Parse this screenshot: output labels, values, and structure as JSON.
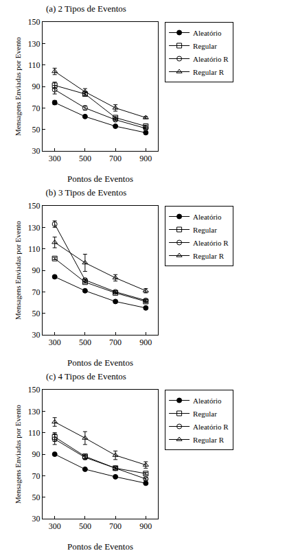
{
  "chart_data": [
    {
      "type": "line",
      "title": "(a) 2 Tipos de Eventos",
      "x_label": "Pontos de Eventos",
      "y_label": "Mensagens Enviadas por Evento",
      "x": [
        300,
        500,
        700,
        900
      ],
      "xlim": [
        220,
        980
      ],
      "xticks": [
        300,
        500,
        700,
        900
      ],
      "ylim": [
        30,
        150
      ],
      "yticks": [
        30,
        50,
        70,
        90,
        110,
        130,
        150
      ],
      "grid": false,
      "legend": "right",
      "series": [
        {
          "name": "Aleatório",
          "color": "#000000",
          "marker": "circle",
          "values": [
            75,
            62,
            53,
            47
          ],
          "errors": [
            2,
            1,
            1,
            1
          ]
        },
        {
          "name": "Regular",
          "color": "#000000",
          "marker": "square-open",
          "values": [
            91,
            83,
            61,
            53
          ],
          "errors": [
            3,
            2,
            1,
            1
          ]
        },
        {
          "name": "Aleatório R",
          "color": "#000000",
          "marker": "circle-open",
          "values": [
            87,
            70,
            59,
            51
          ],
          "errors": [
            4,
            2,
            1,
            1
          ]
        },
        {
          "name": "Regular R",
          "color": "#000000",
          "marker": "triangle-up-open",
          "values": [
            104,
            85,
            70,
            61
          ],
          "errors": [
            3,
            3,
            3,
            1
          ]
        }
      ]
    },
    {
      "type": "line",
      "title": "(b) 3 Tipos de Eventos",
      "x_label": "Pontos de Eventos",
      "y_label": "Mensagens Enviadas por Evento",
      "x": [
        300,
        500,
        700,
        900
      ],
      "xlim": [
        220,
        980
      ],
      "xticks": [
        300,
        500,
        700,
        900
      ],
      "ylim": [
        30,
        150
      ],
      "yticks": [
        30,
        50,
        70,
        90,
        110,
        130,
        150
      ],
      "grid": false,
      "legend": "right",
      "series": [
        {
          "name": "Aleatório",
          "color": "#000000",
          "marker": "circle",
          "values": [
            84,
            71,
            61,
            55
          ],
          "errors": [
            1,
            1,
            1,
            1
          ]
        },
        {
          "name": "Regular",
          "color": "#000000",
          "marker": "square-open",
          "values": [
            101,
            79,
            69,
            61
          ],
          "errors": [
            1,
            1,
            1,
            1
          ]
        },
        {
          "name": "Aleatório R",
          "color": "#000000",
          "marker": "circle-open",
          "values": [
            133,
            81,
            70,
            62
          ],
          "errors": [
            3,
            1,
            1,
            1
          ]
        },
        {
          "name": "Regular R",
          "color": "#000000",
          "marker": "triangle-up-open",
          "values": [
            116,
            97,
            83,
            71
          ],
          "errors": [
            5,
            8,
            3,
            2
          ]
        }
      ]
    },
    {
      "type": "line",
      "title": "(c) 4 Tipos de Eventos",
      "x_label": "Pontos de Eventos",
      "y_label": "Mensagens Enviadas por Evento",
      "x": [
        300,
        500,
        700,
        900
      ],
      "xlim": [
        220,
        980
      ],
      "xticks": [
        300,
        500,
        700,
        900
      ],
      "ylim": [
        30,
        150
      ],
      "yticks": [
        30,
        50,
        70,
        90,
        110,
        130,
        150
      ],
      "grid": false,
      "legend": "right",
      "series": [
        {
          "name": "Aleatório",
          "color": "#000000",
          "marker": "circle",
          "values": [
            90,
            76,
            69,
            63
          ],
          "errors": [
            1,
            1,
            1,
            1
          ]
        },
        {
          "name": "Regular",
          "color": "#000000",
          "marker": "square-open",
          "values": [
            106,
            88,
            77,
            72
          ],
          "errors": [
            4,
            2,
            1,
            1
          ]
        },
        {
          "name": "Aleatório R",
          "color": "#000000",
          "marker": "circle-open",
          "values": [
            104,
            87,
            77,
            67
          ],
          "errors": [
            5,
            2,
            1,
            1
          ]
        },
        {
          "name": "Regular R",
          "color": "#000000",
          "marker": "triangle-up-open",
          "values": [
            120,
            105,
            89,
            80
          ],
          "errors": [
            4,
            6,
            4,
            3
          ]
        }
      ]
    }
  ]
}
